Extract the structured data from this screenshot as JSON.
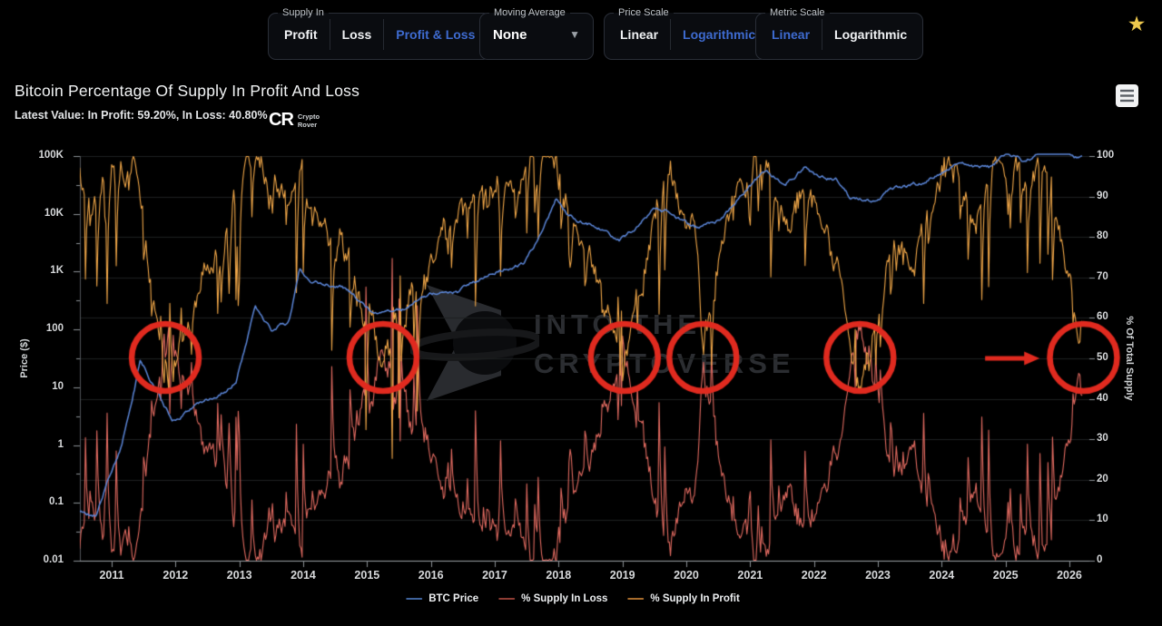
{
  "colors": {
    "accent": "#3e6bd0",
    "background": "#000000",
    "grid": "#1e2022",
    "axis_line": "#9ba0a5",
    "axis_side_line": "#50555a",
    "tick": "#8b9096",
    "annotation_red": "#e02a1f",
    "star_gold": "#edc84d"
  },
  "header": {
    "groups": {
      "supply_in": {
        "label": "Supply In",
        "options": [
          {
            "label": "Profit",
            "active": false
          },
          {
            "label": "Loss",
            "active": false
          },
          {
            "label": "Profit & Loss",
            "active": true
          }
        ]
      },
      "moving_average": {
        "label": "Moving Average",
        "value": "None"
      },
      "price_scale": {
        "label": "Price Scale",
        "options": [
          {
            "label": "Linear",
            "active": false
          },
          {
            "label": "Logarithmic",
            "active": true
          }
        ]
      },
      "metric_scale": {
        "label": "Metric Scale",
        "options": [
          {
            "label": "Linear",
            "active": true
          },
          {
            "label": "Logarithmic",
            "active": false
          }
        ]
      }
    },
    "star_icon": "★"
  },
  "title_block": {
    "title": "Bitcoin Percentage Of Supply In Profit And Loss",
    "latest_value": "Latest Value: In Profit: 59.20%, In Loss: 40.80%",
    "logo_mark": "CR",
    "logo_line1": "Crypto",
    "logo_line2": "Rover"
  },
  "chart_data": {
    "type": "line",
    "title": "Bitcoin Percentage Of Supply In Profit And Loss",
    "x_axis": {
      "ticks": [
        2011,
        2012,
        2013,
        2014,
        2015,
        2016,
        2017,
        2018,
        2019,
        2020,
        2021,
        2022,
        2023,
        2024,
        2025,
        2026
      ],
      "range": [
        2010.5,
        2026.3
      ]
    },
    "y_left": {
      "label": "Price ($)",
      "scale": "log",
      "range": [
        0.01,
        100000
      ],
      "ticks": [
        [
          "100K",
          100000
        ],
        [
          "10K",
          10000
        ],
        [
          "1K",
          1000
        ],
        [
          "100",
          100
        ],
        [
          "10",
          10
        ],
        [
          "1",
          1
        ],
        [
          "0.1",
          0.1
        ],
        [
          "0.01",
          0.01
        ]
      ]
    },
    "y_right": {
      "label": "% Of Total Supply",
      "scale": "linear",
      "min": 0,
      "max": 100,
      "tick_step": 10
    },
    "grid": "horizontal-only",
    "legend_position": "bottom-center",
    "watermark": {
      "line1": "INTO THE",
      "line2": "CRYPTOVERSE"
    },
    "series": [
      {
        "name": "BTC Price",
        "axis": "left",
        "color": "#5b86d8",
        "legend_color": "#3f639c",
        "keypoints": [
          [
            2010.5,
            0.07
          ],
          [
            2010.75,
            0.06
          ],
          [
            2010.95,
            0.25
          ],
          [
            2011.15,
            0.9
          ],
          [
            2011.45,
            29
          ],
          [
            2011.65,
            12
          ],
          [
            2011.95,
            2.8
          ],
          [
            2012.3,
            5
          ],
          [
            2012.65,
            6.8
          ],
          [
            2012.95,
            13
          ],
          [
            2013.25,
            230
          ],
          [
            2013.5,
            95
          ],
          [
            2013.78,
            135
          ],
          [
            2013.94,
            1120
          ],
          [
            2014.15,
            620
          ],
          [
            2014.6,
            590
          ],
          [
            2015.05,
            215
          ],
          [
            2015.6,
            240
          ],
          [
            2015.95,
            400
          ],
          [
            2016.45,
            450
          ],
          [
            2016.75,
            700
          ],
          [
            2017.05,
            1050
          ],
          [
            2017.45,
            1400
          ],
          [
            2017.75,
            4400
          ],
          [
            2017.96,
            19000
          ],
          [
            2018.15,
            8500
          ],
          [
            2018.55,
            6500
          ],
          [
            2018.95,
            3400
          ],
          [
            2019.2,
            5200
          ],
          [
            2019.5,
            12800
          ],
          [
            2019.95,
            7200
          ],
          [
            2020.2,
            5800
          ],
          [
            2020.6,
            9500
          ],
          [
            2020.95,
            26000
          ],
          [
            2021.25,
            61000
          ],
          [
            2021.55,
            33000
          ],
          [
            2021.85,
            66000
          ],
          [
            2022.05,
            42000
          ],
          [
            2022.35,
            39000
          ],
          [
            2022.55,
            20000
          ],
          [
            2022.95,
            16300
          ],
          [
            2023.3,
            28500
          ],
          [
            2023.75,
            34000
          ],
          [
            2024.2,
            69000
          ],
          [
            2024.5,
            61000
          ],
          [
            2024.75,
            59000
          ],
          [
            2024.98,
            99000
          ],
          [
            2025.15,
            96000
          ],
          [
            2025.3,
            83000
          ],
          [
            2025.55,
            109000
          ],
          [
            2025.78,
            119000
          ],
          [
            2025.95,
            104000
          ],
          [
            2026.2,
            90000
          ]
        ]
      },
      {
        "name": "% Supply In Loss",
        "axis": "right",
        "color": "#e06a60",
        "legend_color": "#8f3d34",
        "derived": "100_minus_profit",
        "latest_value_pct": 40.8
      },
      {
        "name": "% Supply In Profit",
        "axis": "right",
        "color": "#efa648",
        "legend_color": "#a86c2c",
        "latest_value_pct": 59.2,
        "keypoints": [
          [
            2010.5,
            96
          ],
          [
            2010.75,
            88
          ],
          [
            2011.0,
            96
          ],
          [
            2011.35,
            96
          ],
          [
            2011.55,
            78
          ],
          [
            2011.84,
            50
          ],
          [
            2012.1,
            60
          ],
          [
            2012.45,
            72
          ],
          [
            2012.8,
            80
          ],
          [
            2013.0,
            92
          ],
          [
            2013.25,
            97
          ],
          [
            2013.5,
            90
          ],
          [
            2013.95,
            97
          ],
          [
            2014.3,
            80
          ],
          [
            2014.7,
            72
          ],
          [
            2015.0,
            57
          ],
          [
            2015.25,
            50
          ],
          [
            2015.6,
            62
          ],
          [
            2015.95,
            72
          ],
          [
            2016.3,
            84
          ],
          [
            2016.7,
            92
          ],
          [
            2017.1,
            95
          ],
          [
            2017.6,
            96
          ],
          [
            2017.95,
            96
          ],
          [
            2018.2,
            80
          ],
          [
            2018.6,
            73
          ],
          [
            2019.03,
            50
          ],
          [
            2019.35,
            75
          ],
          [
            2019.65,
            92
          ],
          [
            2019.95,
            83
          ],
          [
            2020.15,
            84
          ],
          [
            2020.26,
            48
          ],
          [
            2020.5,
            80
          ],
          [
            2020.8,
            95
          ],
          [
            2021.1,
            98
          ],
          [
            2021.4,
            94
          ],
          [
            2021.65,
            80
          ],
          [
            2021.9,
            94
          ],
          [
            2022.15,
            78
          ],
          [
            2022.45,
            64
          ],
          [
            2022.72,
            50
          ],
          [
            2023.0,
            63
          ],
          [
            2023.3,
            76
          ],
          [
            2023.7,
            83
          ],
          [
            2024.0,
            90
          ],
          [
            2024.25,
            96
          ],
          [
            2024.55,
            87
          ],
          [
            2024.85,
            93
          ],
          [
            2025.1,
            96
          ],
          [
            2025.35,
            91
          ],
          [
            2025.6,
            95
          ],
          [
            2025.85,
            82
          ],
          [
            2026.05,
            66
          ],
          [
            2026.2,
            59.2
          ]
        ]
      }
    ],
    "annotations": {
      "circle_color": "#e02a1f",
      "circles_at_50pct_years": [
        2011.84,
        2015.25,
        2019.03,
        2020.26,
        2022.72,
        2026.22
      ],
      "arrow": {
        "from_year": 2024.68,
        "to_year": 2025.42,
        "pct": 50
      }
    },
    "render_hints": {
      "seed": 11,
      "samples": 880,
      "x_start": 2010.5,
      "x_end": 2026.2,
      "profit_walk_amp": 5,
      "profit_spike_amp": 26,
      "btc_jitter": 0.06
    }
  }
}
